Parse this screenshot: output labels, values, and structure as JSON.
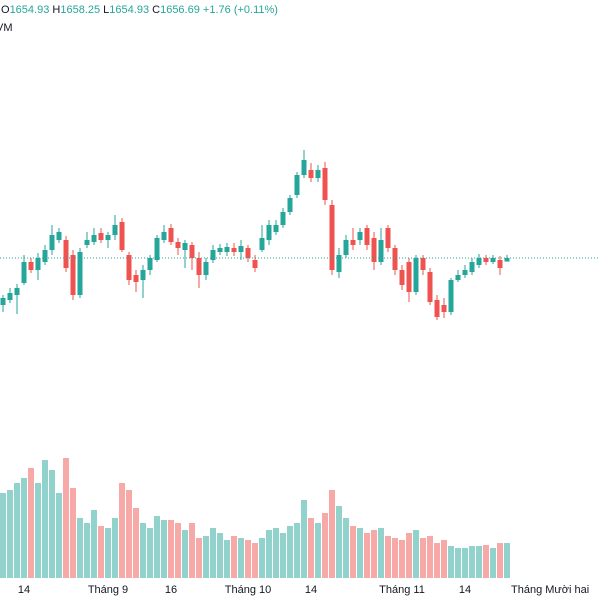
{
  "header": {
    "open_label": "O",
    "open": 1654.93,
    "high_label": "H",
    "high": 1658.25,
    "low_label": "L",
    "low": 1654.93,
    "close_label": "C",
    "close": 1656.69,
    "change_label": "+1.76",
    "change": 1.76,
    "change_pct_label": "(+0.11%)",
    "change_pct": 0.11,
    "volume_label": "VM"
  },
  "chart_data": {
    "type": "candlestick",
    "up_color": "#26a69a",
    "down_color": "#ef5350",
    "ylim": [
      1565.7,
      1775.7
    ],
    "volume_lim": [
      0,
      128
    ],
    "categories": [
      null,
      null,
      null,
      "14",
      null,
      null,
      null,
      null,
      null,
      null,
      null,
      null,
      null,
      null,
      null,
      "Tháng 9",
      null,
      null,
      null,
      null,
      null,
      null,
      null,
      null,
      "16",
      null,
      null,
      null,
      null,
      null,
      null,
      null,
      null,
      null,
      null,
      "Tháng 10",
      null,
      null,
      null,
      null,
      null,
      null,
      null,
      null,
      "14",
      null,
      null,
      null,
      null,
      null,
      null,
      null,
      null,
      null,
      null,
      null,
      null,
      "Tháng 11",
      null,
      null,
      null,
      null,
      null,
      null,
      null,
      null,
      "14",
      null,
      null,
      null,
      null,
      null,
      null
    ],
    "extra_x_label": "Tháng Mười hai",
    "open": [
      1633.2,
      1635.7,
      1638.2,
      1644.2,
      1654.7,
      1650.7,
      1654.7,
      1660.7,
      1665.7,
      1665.7,
      1658.2,
      1638.2,
      1663.2,
      1664.7,
      1669.2,
      1665.7,
      1668.2,
      1674.7,
      1658.2,
      1648.2,
      1645.7,
      1650.7,
      1655.7,
      1665.7,
      1671.7,
      1664.7,
      1660.7,
      1663.2,
      1656.7,
      1648.2,
      1655.7,
      1659.7,
      1659.7,
      1661.7,
      1659.7,
      1661.7,
      1655.7,
      1660.7,
      1665.7,
      1669.7,
      1673.2,
      1679.7,
      1688.2,
      1698.2,
      1700.7,
      1696.7,
      1701.7,
      1683.2,
      1649.7,
      1658.2,
      1665.7,
      1665.7,
      1671.7,
      1666.7,
      1654.7,
      1671.7,
      1661.7,
      1650.7,
      1654.7,
      1639.7,
      1656.7,
      1649.7,
      1635.7,
      1633.2,
      1629.7,
      1645.7,
      1648.2,
      1649.7,
      1653.2,
      1656.7,
      1654.7,
      1655.7,
      1654.93
    ],
    "high": [
      1638.2,
      1641.7,
      1643.7,
      1658.2,
      1656.7,
      1659.2,
      1663.2,
      1673.2,
      1671.7,
      1667.7,
      1660.7,
      1661.7,
      1669.7,
      1671.7,
      1671.7,
      1669.7,
      1678.2,
      1676.7,
      1659.7,
      1650.7,
      1653.2,
      1658.2,
      1668.2,
      1673.2,
      1673.7,
      1666.7,
      1665.7,
      1664.7,
      1659.7,
      1656.7,
      1663.2,
      1663.7,
      1664.2,
      1664.2,
      1665.7,
      1663.2,
      1658.2,
      1673.2,
      1675.7,
      1675.7,
      1681.7,
      1688.2,
      1699.7,
      1710.7,
      1704.2,
      1703.2,
      1704.7,
      1685.7,
      1661.7,
      1668.2,
      1671.7,
      1671.7,
      1673.2,
      1669.7,
      1671.7,
      1673.2,
      1663.2,
      1653.2,
      1656.7,
      1658.2,
      1658.2,
      1651.7,
      1638.2,
      1636.7,
      1646.7,
      1650.7,
      1653.2,
      1656.7,
      1658.7,
      1658.2,
      1658.2,
      1657.7,
      1658.25
    ],
    "low": [
      1629.7,
      1634.2,
      1628.7,
      1643.2,
      1649.2,
      1645.7,
      1653.2,
      1658.2,
      1664.2,
      1649.7,
      1635.7,
      1636.7,
      1661.7,
      1663.2,
      1664.2,
      1661.7,
      1665.7,
      1659.7,
      1643.2,
      1639.7,
      1636.7,
      1648.2,
      1654.7,
      1664.2,
      1663.2,
      1658.2,
      1651.7,
      1650.7,
      1641.7,
      1645.7,
      1654.2,
      1658.2,
      1657.7,
      1657.7,
      1655.7,
      1654.7,
      1649.7,
      1659.7,
      1663.2,
      1668.2,
      1671.7,
      1678.2,
      1686.7,
      1696.7,
      1694.7,
      1694.7,
      1683.2,
      1648.2,
      1646.7,
      1656.7,
      1660.7,
      1663.2,
      1660.7,
      1650.7,
      1653.2,
      1659.7,
      1648.2,
      1640.7,
      1634.7,
      1638.2,
      1648.2,
      1633.2,
      1625.7,
      1626.7,
      1628.2,
      1644.7,
      1646.7,
      1648.2,
      1651.7,
      1653.2,
      1653.7,
      1648.2,
      1654.93
    ],
    "close": [
      1636.7,
      1639.2,
      1641.7,
      1654.7,
      1650.7,
      1656.7,
      1660.7,
      1668.2,
      1669.7,
      1651.7,
      1638.2,
      1659.7,
      1665.7,
      1668.2,
      1665.7,
      1668.2,
      1673.2,
      1660.7,
      1645.7,
      1644.7,
      1650.7,
      1656.7,
      1666.7,
      1669.7,
      1664.7,
      1661.7,
      1664.2,
      1656.7,
      1648.2,
      1654.7,
      1660.7,
      1661.7,
      1662.2,
      1659.7,
      1662.7,
      1656.7,
      1651.7,
      1666.7,
      1673.2,
      1673.2,
      1679.7,
      1686.7,
      1698.2,
      1705.7,
      1696.7,
      1700.7,
      1685.7,
      1650.7,
      1658.2,
      1665.7,
      1663.2,
      1669.7,
      1663.2,
      1654.7,
      1665.7,
      1661.7,
      1650.7,
      1643.2,
      1639.7,
      1656.7,
      1650.7,
      1634.7,
      1627.2,
      1629.7,
      1645.7,
      1648.2,
      1650.7,
      1654.7,
      1656.7,
      1654.7,
      1656.7,
      1651.7,
      1656.69
    ],
    "volume": [
      85,
      88,
      95,
      100,
      110,
      95,
      118,
      108,
      85,
      120,
      90,
      60,
      55,
      68,
      52,
      50,
      60,
      95,
      88,
      70,
      55,
      50,
      62,
      58,
      58,
      55,
      48,
      55,
      40,
      42,
      50,
      45,
      38,
      42,
      40,
      38,
      35,
      40,
      48,
      50,
      45,
      52,
      55,
      78,
      60,
      55,
      65,
      88,
      72,
      60,
      52,
      50,
      45,
      48,
      50,
      42,
      40,
      38,
      45,
      48,
      40,
      42,
      35,
      38,
      32,
      30,
      30,
      32,
      32,
      33,
      30,
      35,
      35
    ]
  }
}
